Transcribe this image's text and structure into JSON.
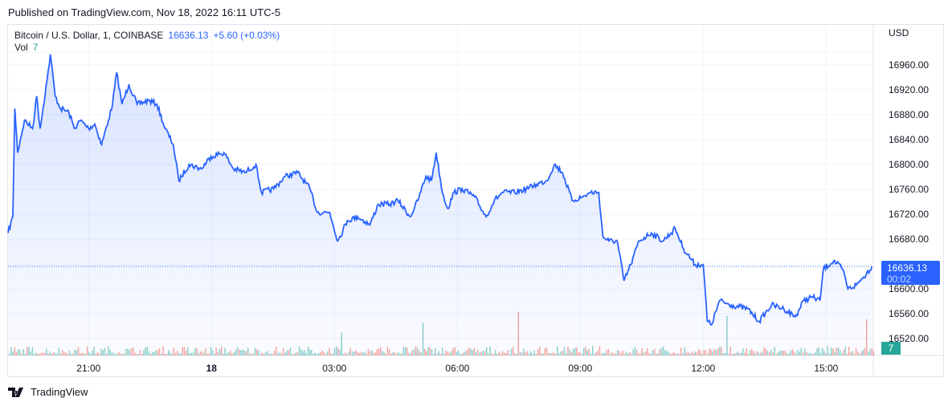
{
  "header": {
    "published": "Published on TradingView.com, Nov 18, 2022 16:11 UTC-5"
  },
  "legend": {
    "symbol": "Bitcoin / U.S. Dollar, 1, COINBASE",
    "last": "16636.13",
    "change": "+5.60 (+0.03%)",
    "vol_label": "Vol",
    "vol_value": "7"
  },
  "footer": {
    "brand": "TradingView"
  },
  "colors": {
    "line": "#2962ff",
    "up": "#26a69a",
    "down": "#ef5350"
  },
  "chart_data": {
    "type": "area",
    "currency": "USD",
    "y_ticks": [
      "16960.00",
      "16920.00",
      "16880.00",
      "16840.00",
      "16800.00",
      "16760.00",
      "16720.00",
      "16680.00",
      "16600.00",
      "16560.00",
      "16520.00"
    ],
    "y_tick_values": [
      16960,
      16920,
      16880,
      16840,
      16800,
      16760,
      16720,
      16680,
      16600,
      16560,
      16520
    ],
    "x_ticks": [
      {
        "label": "21:00",
        "time": "21:00"
      },
      {
        "label": "18",
        "time": "00:00",
        "bold": true
      },
      {
        "label": "03:00",
        "time": "03:00"
      },
      {
        "label": "06:00",
        "time": "06:00"
      },
      {
        "label": "09:00",
        "time": "09:00"
      },
      {
        "label": "12:00",
        "time": "12:00"
      },
      {
        "label": "15:00",
        "time": "15:00"
      }
    ],
    "x_range": [
      "19:02",
      "16:09"
    ],
    "ylim": [
      16500,
      17000
    ],
    "last_price": "16636.13",
    "countdown": "00:02",
    "last_volume": "7",
    "grid": true,
    "points": [
      [
        "19:02",
        16690
      ],
      [
        "19:09",
        16716
      ],
      [
        "19:12",
        16890
      ],
      [
        "19:16",
        16819
      ],
      [
        "19:26",
        16871
      ],
      [
        "19:38",
        16858
      ],
      [
        "19:44",
        16910
      ],
      [
        "19:49",
        16858
      ],
      [
        "19:59",
        16935
      ],
      [
        "20:04",
        16977
      ],
      [
        "20:11",
        16910
      ],
      [
        "20:19",
        16890
      ],
      [
        "20:31",
        16884
      ],
      [
        "20:39",
        16858
      ],
      [
        "20:48",
        16871
      ],
      [
        "21:00",
        16858
      ],
      [
        "21:09",
        16865
      ],
      [
        "21:19",
        16832
      ],
      [
        "21:29",
        16871
      ],
      [
        "21:35",
        16897
      ],
      [
        "21:41",
        16948
      ],
      [
        "21:49",
        16897
      ],
      [
        "21:59",
        16929
      ],
      [
        "22:11",
        16897
      ],
      [
        "22:28",
        16903
      ],
      [
        "22:40",
        16897
      ],
      [
        "22:52",
        16858
      ],
      [
        "23:04",
        16832
      ],
      [
        "23:12",
        16774
      ],
      [
        "23:27",
        16800
      ],
      [
        "23:45",
        16793
      ],
      [
        "23:59",
        16813
      ],
      [
        "00:18",
        16819
      ],
      [
        "00:32",
        16793
      ],
      [
        "00:49",
        16787
      ],
      [
        "01:05",
        16800
      ],
      [
        "01:13",
        16755
      ],
      [
        "01:31",
        16761
      ],
      [
        "01:48",
        16781
      ],
      [
        "02:06",
        16787
      ],
      [
        "02:24",
        16761
      ],
      [
        "02:35",
        16723
      ],
      [
        "02:53",
        16723
      ],
      [
        "03:05",
        16677
      ],
      [
        "03:19",
        16710
      ],
      [
        "03:34",
        16716
      ],
      [
        "03:52",
        16703
      ],
      [
        "04:04",
        16736
      ],
      [
        "04:21",
        16736
      ],
      [
        "04:33",
        16742
      ],
      [
        "04:51",
        16716
      ],
      [
        "05:02",
        16742
      ],
      [
        "05:14",
        16781
      ],
      [
        "05:22",
        16774
      ],
      [
        "05:29",
        16819
      ],
      [
        "05:38",
        16755
      ],
      [
        "05:46",
        16729
      ],
      [
        "05:55",
        16755
      ],
      [
        "06:07",
        16761
      ],
      [
        "06:25",
        16748
      ],
      [
        "06:42",
        16716
      ],
      [
        "06:54",
        16742
      ],
      [
        "07:06",
        16755
      ],
      [
        "07:24",
        16755
      ],
      [
        "07:41",
        16761
      ],
      [
        "07:56",
        16768
      ],
      [
        "08:11",
        16774
      ],
      [
        "08:22",
        16800
      ],
      [
        "08:34",
        16787
      ],
      [
        "08:48",
        16742
      ],
      [
        "09:04",
        16748
      ],
      [
        "09:15",
        16755
      ],
      [
        "09:27",
        16755
      ],
      [
        "09:33",
        16684
      ],
      [
        "09:42",
        16677
      ],
      [
        "09:54",
        16677
      ],
      [
        "10:04",
        16613
      ],
      [
        "10:14",
        16639
      ],
      [
        "10:26",
        16677
      ],
      [
        "10:44",
        16690
      ],
      [
        "11:01",
        16677
      ],
      [
        "11:19",
        16697
      ],
      [
        "11:31",
        16665
      ],
      [
        "11:48",
        16639
      ],
      [
        "12:00",
        16639
      ],
      [
        "12:06",
        16548
      ],
      [
        "12:12",
        16542
      ],
      [
        "12:24",
        16581
      ],
      [
        "12:41",
        16574
      ],
      [
        "13:05",
        16568
      ],
      [
        "13:22",
        16548
      ],
      [
        "13:40",
        16574
      ],
      [
        "13:58",
        16568
      ],
      [
        "14:15",
        16555
      ],
      [
        "14:27",
        16581
      ],
      [
        "14:39",
        16587
      ],
      [
        "14:51",
        16581
      ],
      [
        "14:56",
        16632
      ],
      [
        "15:11",
        16645
      ],
      [
        "15:24",
        16632
      ],
      [
        "15:32",
        16600
      ],
      [
        "15:44",
        16606
      ],
      [
        "15:55",
        16619
      ],
      [
        "16:07",
        16636.13
      ]
    ]
  }
}
